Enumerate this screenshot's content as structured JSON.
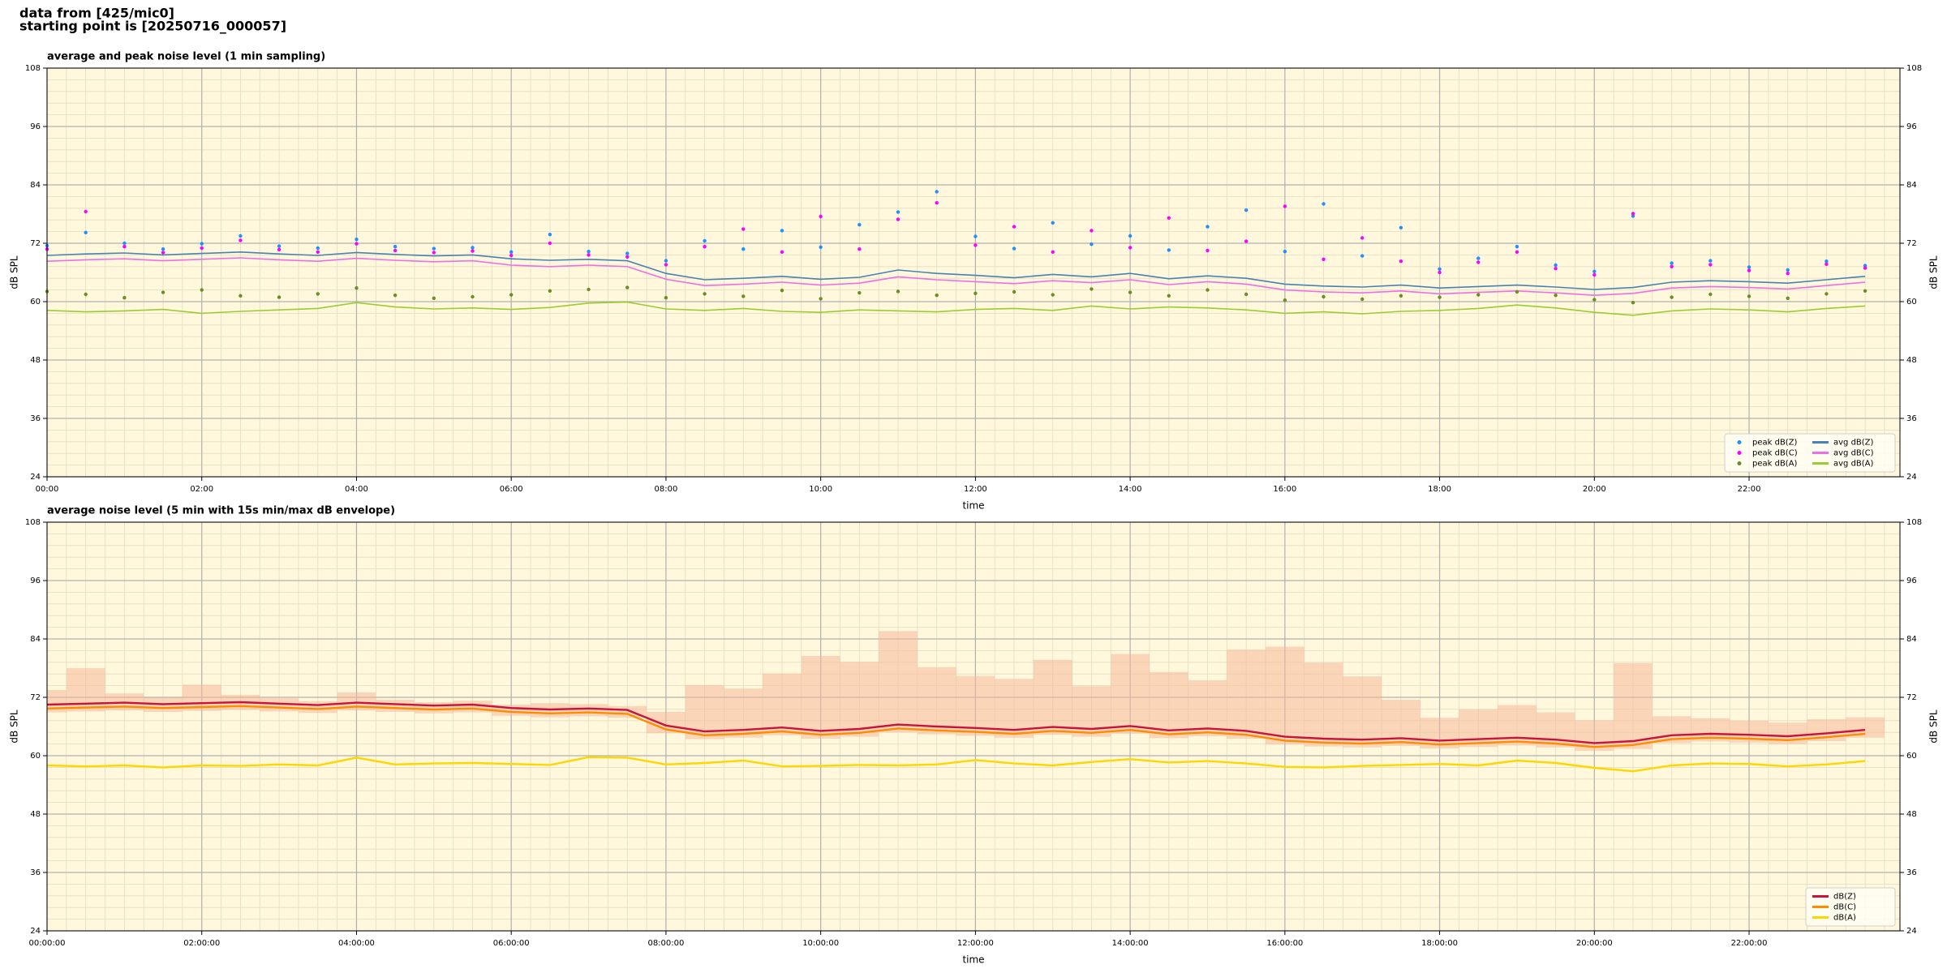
{
  "suptitle": [
    "data from [425/mic0]",
    "starting point is [20250716_000057]"
  ],
  "chart_data": [
    {
      "type": "line",
      "title": "average and peak noise level (1 min sampling)",
      "xlabel": "time",
      "ylabel": "dB SPL",
      "xlim": [
        0,
        23.95
      ],
      "ylim": [
        24,
        108
      ],
      "yticks": [
        24,
        36,
        48,
        60,
        72,
        84,
        96,
        108
      ],
      "xticks": [
        {
          "value": 0,
          "label": "00:00"
        },
        {
          "value": 2,
          "label": "02:00"
        },
        {
          "value": 4,
          "label": "04:00"
        },
        {
          "value": 6,
          "label": "06:00"
        },
        {
          "value": 8,
          "label": "08:00"
        },
        {
          "value": 10,
          "label": "10:00"
        },
        {
          "value": 12,
          "label": "12:00"
        },
        {
          "value": 14,
          "label": "14:00"
        },
        {
          "value": 16,
          "label": "16:00"
        },
        {
          "value": 18,
          "label": "18:00"
        },
        {
          "value": 20,
          "label": "20:00"
        },
        {
          "value": 22,
          "label": "22:00"
        }
      ],
      "grid": true,
      "legend": "lower right",
      "legend_columns": 2,
      "background": "#fff8dc",
      "x": [
        0,
        0.5,
        1,
        1.5,
        2,
        2.5,
        3,
        3.5,
        4,
        4.5,
        5,
        5.5,
        6,
        6.5,
        7,
        7.5,
        8,
        8.5,
        9,
        9.5,
        10,
        10.5,
        11,
        11.5,
        12,
        12.5,
        13,
        13.5,
        14,
        14.5,
        15,
        15.5,
        16,
        16.5,
        17,
        17.5,
        18,
        18.5,
        19,
        19.5,
        20,
        20.5,
        21,
        21.5,
        22,
        22.5,
        23,
        23.5
      ],
      "series": [
        {
          "name": "peak dB(Z)",
          "kind": "scatter",
          "color": "#1e90ff",
          "values": [
            71.5,
            74.2,
            72.0,
            70.8,
            71.9,
            73.5,
            71.4,
            71.0,
            72.8,
            71.3,
            70.9,
            71.1,
            70.2,
            73.8,
            70.3,
            69.9,
            68.4,
            72.5,
            70.8,
            74.6,
            71.2,
            75.8,
            78.4,
            82.6,
            73.4,
            70.9,
            76.2,
            71.8,
            73.5,
            70.6,
            75.4,
            78.8,
            70.3,
            80.1,
            69.4,
            75.2,
            66.7,
            68.9,
            71.3,
            67.5,
            66.2,
            77.6,
            67.9,
            68.4,
            67.1,
            66.5,
            68.3,
            67.4
          ]
        },
        {
          "name": "peak dB(C)",
          "kind": "scatter",
          "color": "#ff00ff",
          "values": [
            70.8,
            78.5,
            71.3,
            70.1,
            71.0,
            72.6,
            70.7,
            70.2,
            71.9,
            70.5,
            70.1,
            70.4,
            69.5,
            72.0,
            69.6,
            69.2,
            67.6,
            71.3,
            74.9,
            70.2,
            77.5,
            70.8,
            76.9,
            80.3,
            71.6,
            75.4,
            70.2,
            74.6,
            71.1,
            77.2,
            70.5,
            72.4,
            79.6,
            68.7,
            73.1,
            68.3,
            66.0,
            68.1,
            70.2,
            66.8,
            65.5,
            78.1,
            67.2,
            67.6,
            66.4,
            65.8,
            67.7,
            66.9
          ]
        },
        {
          "name": "peak dB(A)",
          "kind": "scatter",
          "color": "#6b8e23",
          "values": [
            62.1,
            61.5,
            60.8,
            61.9,
            62.4,
            61.2,
            60.9,
            61.6,
            62.8,
            61.3,
            60.7,
            61.0,
            61.4,
            62.2,
            62.5,
            62.9,
            60.8,
            61.6,
            61.1,
            62.3,
            60.6,
            61.8,
            62.1,
            61.3,
            61.7,
            62.0,
            61.4,
            62.6,
            61.9,
            61.2,
            62.4,
            61.5,
            60.3,
            61.0,
            60.5,
            61.2,
            60.9,
            61.4,
            62.0,
            61.3,
            60.4,
            59.8,
            60.9,
            61.5,
            61.1,
            60.7,
            61.6,
            62.2
          ]
        },
        {
          "name": "avg dB(Z)",
          "kind": "line",
          "color": "#4682b4",
          "values": [
            69.5,
            69.8,
            70.0,
            69.6,
            69.9,
            70.2,
            69.8,
            69.5,
            70.1,
            69.7,
            69.4,
            69.6,
            68.8,
            68.5,
            68.7,
            68.4,
            65.8,
            64.5,
            64.8,
            65.2,
            64.6,
            65.0,
            66.5,
            65.8,
            65.4,
            64.9,
            65.6,
            65.1,
            65.8,
            64.7,
            65.3,
            64.8,
            63.6,
            63.2,
            63.0,
            63.4,
            62.8,
            63.1,
            63.4,
            63.0,
            62.5,
            62.9,
            64.0,
            64.3,
            64.1,
            63.8,
            64.5,
            65.2
          ]
        },
        {
          "name": "avg dB(C)",
          "kind": "line",
          "color": "#ee6ee6",
          "values": [
            68.3,
            68.6,
            68.8,
            68.4,
            68.7,
            69.0,
            68.6,
            68.3,
            68.9,
            68.5,
            68.2,
            68.4,
            67.5,
            67.2,
            67.5,
            67.2,
            64.6,
            63.3,
            63.6,
            64.0,
            63.4,
            63.8,
            65.1,
            64.5,
            64.1,
            63.7,
            64.3,
            63.9,
            64.5,
            63.5,
            64.1,
            63.6,
            62.4,
            62.0,
            61.8,
            62.2,
            61.6,
            61.9,
            62.2,
            61.8,
            61.3,
            61.7,
            62.8,
            63.1,
            62.9,
            62.6,
            63.3,
            64.0
          ]
        },
        {
          "name": "avg dB(A)",
          "kind": "line",
          "color": "#9acd32",
          "values": [
            58.2,
            57.9,
            58.1,
            58.4,
            57.6,
            58.0,
            58.3,
            58.6,
            59.8,
            58.9,
            58.5,
            58.7,
            58.4,
            58.8,
            59.7,
            59.9,
            58.5,
            58.2,
            58.6,
            58.0,
            57.8,
            58.3,
            58.1,
            57.9,
            58.4,
            58.6,
            58.2,
            59.1,
            58.5,
            58.9,
            58.7,
            58.3,
            57.6,
            57.9,
            57.5,
            58.0,
            58.2,
            58.6,
            59.3,
            58.7,
            57.8,
            57.2,
            58.1,
            58.5,
            58.3,
            57.9,
            58.6,
            59.1
          ]
        }
      ]
    },
    {
      "type": "line",
      "title": "average noise level (5 min with 15s min/max dB envelope)",
      "xlabel": "time",
      "ylabel": "dB SPL",
      "xlim": [
        0,
        23.95
      ],
      "ylim": [
        24,
        108
      ],
      "yticks": [
        24,
        36,
        48,
        60,
        72,
        84,
        96,
        108
      ],
      "xticks": [
        {
          "value": 0,
          "label": "00:00:00"
        },
        {
          "value": 2,
          "label": "02:00:00"
        },
        {
          "value": 4,
          "label": "04:00:00"
        },
        {
          "value": 6,
          "label": "06:00:00"
        },
        {
          "value": 8,
          "label": "08:00:00"
        },
        {
          "value": 10,
          "label": "10:00:00"
        },
        {
          "value": 12,
          "label": "12:00:00"
        },
        {
          "value": 14,
          "label": "14:00:00"
        },
        {
          "value": 16,
          "label": "16:00:00"
        },
        {
          "value": 18,
          "label": "18:00:00"
        },
        {
          "value": 20,
          "label": "20:00:00"
        },
        {
          "value": 22,
          "label": "22:00:00"
        }
      ],
      "grid": true,
      "legend": "lower right",
      "legend_columns": 1,
      "background": "#fff8dc",
      "x": [
        0,
        0.5,
        1,
        1.5,
        2,
        2.5,
        3,
        3.5,
        4,
        4.5,
        5,
        5.5,
        6,
        6.5,
        7,
        7.5,
        8,
        8.5,
        9,
        9.5,
        10,
        10.5,
        11,
        11.5,
        12,
        12.5,
        13,
        13.5,
        14,
        14.5,
        15,
        15.5,
        16,
        16.5,
        17,
        17.5,
        18,
        18.5,
        19,
        19.5,
        20,
        20.5,
        21,
        21.5,
        22,
        22.5,
        23,
        23.5
      ],
      "envelope": {
        "color": "#f5b89a",
        "upper": [
          73.5,
          78.0,
          72.8,
          71.9,
          74.6,
          72.5,
          71.8,
          71.2,
          73.0,
          71.5,
          71.0,
          71.3,
          70.5,
          70.8,
          70.6,
          70.2,
          69.0,
          74.5,
          73.8,
          76.9,
          80.5,
          79.3,
          85.6,
          78.2,
          76.4,
          75.8,
          79.7,
          74.3,
          80.9,
          77.2,
          75.5,
          81.8,
          82.4,
          79.1,
          76.3,
          71.5,
          67.8,
          69.5,
          70.4,
          68.9,
          67.3,
          79.0,
          68.1,
          67.7,
          67.2,
          66.8,
          67.5,
          67.9
        ],
        "lower": [
          68.9,
          69.1,
          69.3,
          69.0,
          69.2,
          69.4,
          69.1,
          68.8,
          69.3,
          69.0,
          68.7,
          68.9,
          68.2,
          67.9,
          68.1,
          67.8,
          64.6,
          63.4,
          63.7,
          64.2,
          63.5,
          63.9,
          64.8,
          64.4,
          64.1,
          63.7,
          64.3,
          63.9,
          64.5,
          63.6,
          64.0,
          63.5,
          62.3,
          61.9,
          61.7,
          62.0,
          61.5,
          61.8,
          62.1,
          61.7,
          61.0,
          61.4,
          62.6,
          62.9,
          62.7,
          62.4,
          63.0,
          63.7
        ]
      },
      "series": [
        {
          "name": "dB(Z)",
          "kind": "line",
          "color": "#c8143c",
          "values": [
            70.5,
            70.7,
            70.9,
            70.6,
            70.8,
            71.0,
            70.7,
            70.4,
            70.9,
            70.6,
            70.3,
            70.5,
            69.8,
            69.5,
            69.7,
            69.4,
            66.2,
            65.0,
            65.3,
            65.8,
            65.1,
            65.5,
            66.4,
            66.0,
            65.7,
            65.3,
            65.9,
            65.5,
            66.1,
            65.2,
            65.6,
            65.1,
            63.9,
            63.5,
            63.3,
            63.6,
            63.1,
            63.4,
            63.7,
            63.3,
            62.6,
            63.0,
            64.2,
            64.5,
            64.3,
            64.0,
            64.6,
            65.3
          ]
        },
        {
          "name": "dB(C)",
          "kind": "line",
          "color": "#ff8c00",
          "values": [
            69.7,
            69.9,
            70.1,
            69.8,
            70.0,
            70.2,
            69.9,
            69.6,
            70.1,
            69.8,
            69.5,
            69.7,
            69.0,
            68.7,
            68.9,
            68.6,
            65.4,
            64.2,
            64.5,
            65.0,
            64.3,
            64.7,
            65.6,
            65.2,
            64.9,
            64.5,
            65.1,
            64.7,
            65.3,
            64.4,
            64.8,
            64.3,
            63.1,
            62.7,
            62.5,
            62.8,
            62.3,
            62.6,
            62.9,
            62.5,
            61.8,
            62.2,
            63.4,
            63.7,
            63.5,
            63.2,
            63.8,
            64.5
          ]
        },
        {
          "name": "dB(A)",
          "kind": "line",
          "color": "#ffd700",
          "values": [
            58.0,
            57.8,
            58.0,
            57.6,
            58.0,
            57.9,
            58.2,
            58.0,
            59.6,
            58.2,
            58.4,
            58.5,
            58.3,
            58.1,
            59.7,
            59.6,
            58.2,
            58.5,
            59.0,
            57.8,
            57.9,
            58.1,
            58.0,
            58.2,
            59.1,
            58.4,
            58.0,
            58.7,
            59.3,
            58.6,
            58.9,
            58.4,
            57.7,
            57.6,
            57.9,
            58.1,
            58.3,
            58.0,
            59.0,
            58.5,
            57.5,
            56.8,
            58.0,
            58.4,
            58.3,
            57.8,
            58.2,
            58.9
          ]
        }
      ]
    }
  ]
}
